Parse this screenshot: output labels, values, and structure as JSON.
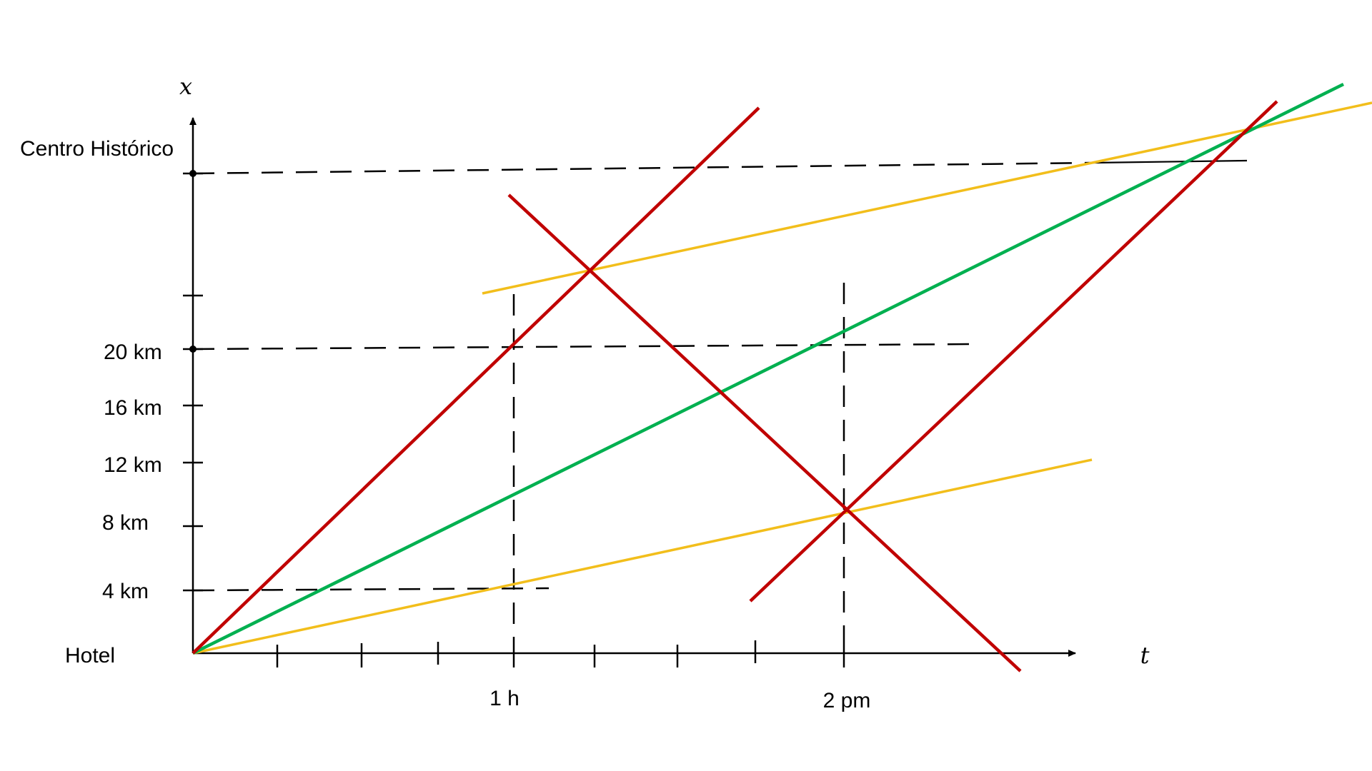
{
  "axes": {
    "y_var": "x",
    "x_var": "t"
  },
  "y_labels": {
    "destination": "Centro Histórico",
    "km20": "20 km",
    "km16": "16 km",
    "km12": "12 km",
    "km8": "8 km",
    "km4": "4 km",
    "origin": "Hotel"
  },
  "x_labels": {
    "h1": "1 h",
    "pm2": "2 pm"
  },
  "colors": {
    "red": "#C00000",
    "green": "#00B050",
    "yellow": "#F2BE1B",
    "axis": "#000000"
  }
}
